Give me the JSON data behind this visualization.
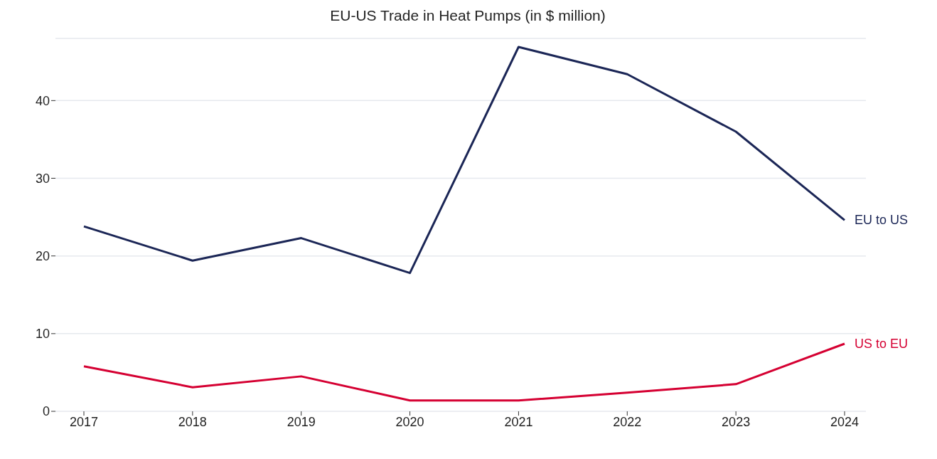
{
  "chart_data": {
    "type": "line",
    "title": "EU-US Trade in Heat Pumps (in $ million)",
    "categories": [
      "2017",
      "2018",
      "2019",
      "2020",
      "2021",
      "2022",
      "2023",
      "2024"
    ],
    "series": [
      {
        "name": "EU to US",
        "color": "#1b2656",
        "values": [
          23.8,
          19.4,
          22.3,
          17.8,
          46.9,
          43.4,
          36.0,
          24.6
        ]
      },
      {
        "name": "US to EU",
        "color": "#d50032",
        "values": [
          5.8,
          3.1,
          4.5,
          1.4,
          1.4,
          2.4,
          3.5,
          8.7
        ]
      }
    ],
    "ylim": [
      0,
      48
    ],
    "yticks": [
      0,
      10,
      20,
      30,
      40
    ],
    "grid": "y",
    "marker": "none",
    "line_style": "solid"
  }
}
